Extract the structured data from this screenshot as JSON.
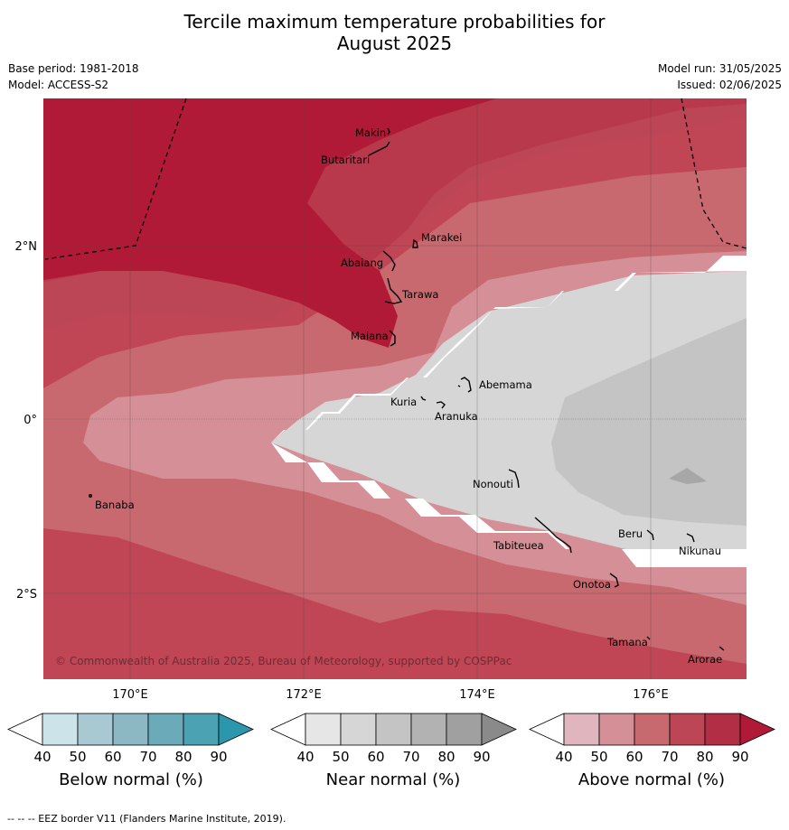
{
  "title_line1": "Tercile maximum temperature probabilities for",
  "title_line2": "August 2025",
  "base_period": "Base period: 1981-2018",
  "model": "Model: ACCESS-S2",
  "model_run": "Model run: 31/05/2025",
  "issued": "Issued: 02/06/2025",
  "lat_labels": [
    "2°N",
    "0°",
    "2°S"
  ],
  "lon_labels": [
    "170°E",
    "172°E",
    "174°E",
    "176°E"
  ],
  "places": [
    "Makin",
    "Butaritari",
    "Marakei",
    "Abaiang",
    "Tarawa",
    "Maiana",
    "Abemama",
    "Kuria",
    "Aranuka",
    "Banaba",
    "Nonouti",
    "Tabiteuea",
    "Beru",
    "Nikunau",
    "Onotoa",
    "Tamana",
    "Arorae"
  ],
  "copyright": "© Commonwealth of Australia 2025, Bureau of Meteorology, supported by COSPPac",
  "colorbars": [
    {
      "label": "Below normal (%)",
      "ticks": [
        "40",
        "50",
        "60",
        "70",
        "80",
        "90"
      ],
      "colors": [
        "#ffffff",
        "#cde3ea",
        "#a8c9d2",
        "#8cb8c4",
        "#6aaab9",
        "#4aa2b3",
        "#2b96ac"
      ]
    },
    {
      "label": "Near normal (%)",
      "ticks": [
        "40",
        "50",
        "60",
        "70",
        "80",
        "90"
      ],
      "colors": [
        "#ffffff",
        "#e6e6e6",
        "#d6d6d6",
        "#c4c4c4",
        "#b2b2b2",
        "#a0a0a0",
        "#8a8a8a"
      ]
    },
    {
      "label": "Above normal (%)",
      "ticks": [
        "40",
        "50",
        "60",
        "70",
        "80",
        "90"
      ],
      "colors": [
        "#ffffff",
        "#e1b5be",
        "#d58f97",
        "#c8686f",
        "#bc4655",
        "#b12e44",
        "#b11a36"
      ]
    }
  ],
  "footnote": "--  --  -- EEZ border V11 (Flanders Marine Institute, 2019)."
}
